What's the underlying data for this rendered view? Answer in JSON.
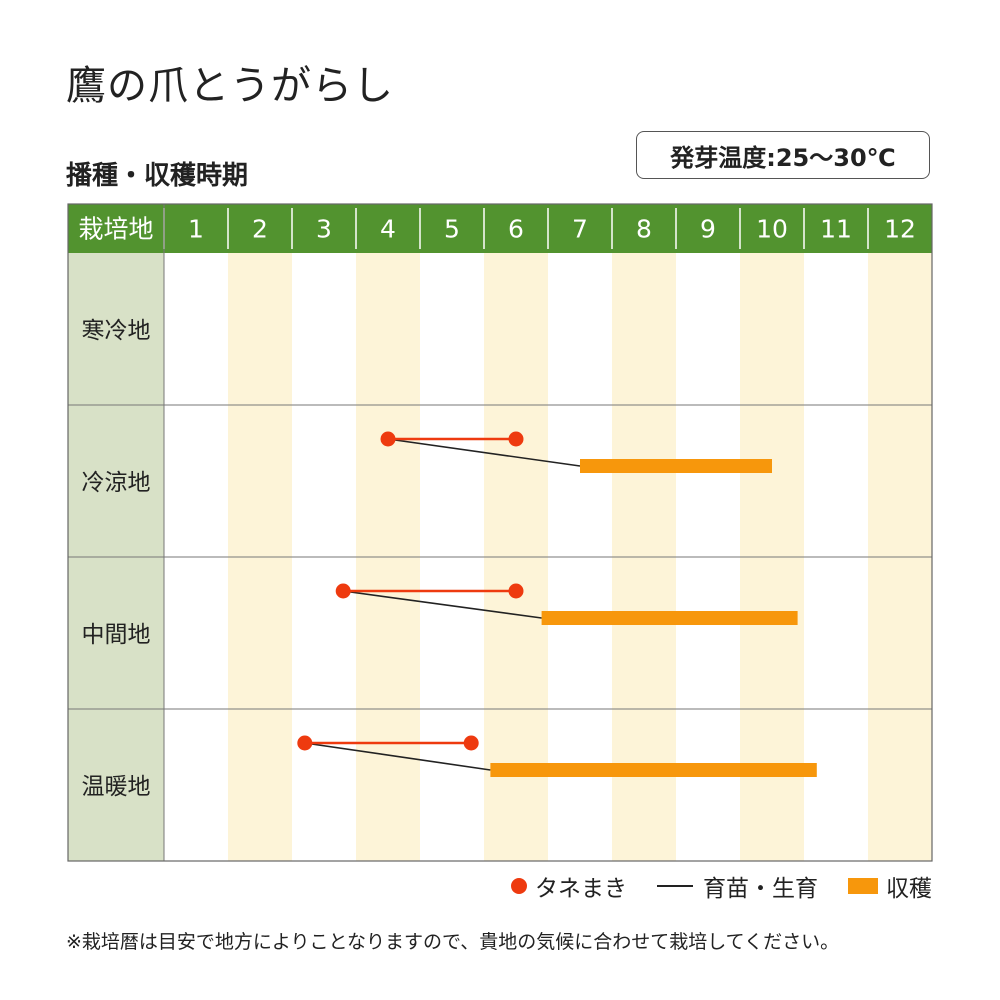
{
  "title": "鷹の爪とうがらし",
  "subtitle": "播種・収穫時期",
  "germination_temp": "発芽温度:25～30℃",
  "note": "※栽培暦は目安で地方によりことなりますので、貴地の気候に合わせて栽培してください。",
  "colors": {
    "header_green": "#52932f",
    "region_bg": "#d8e1c7",
    "stripe": "#fdf4d8",
    "sowing": "#ee3a0f",
    "seedling": "#222222",
    "harvest": "#f7970c"
  },
  "legend": {
    "sowing": "タネまき",
    "seedling": "育苗・生育",
    "harvest": "収穫"
  },
  "chart_data": {
    "type": "table",
    "header": "栽培地",
    "months": [
      "1",
      "2",
      "3",
      "4",
      "5",
      "6",
      "7",
      "8",
      "9",
      "10",
      "11",
      "12"
    ],
    "regions": [
      {
        "name": "寒冷地",
        "sowing": null,
        "harvest": null
      },
      {
        "name": "冷涼地",
        "sowing": [
          4.5,
          6.5
        ],
        "harvest": [
          7.5,
          10.5
        ]
      },
      {
        "name": "中間地",
        "sowing": [
          3.8,
          6.5
        ],
        "harvest": [
          6.9,
          10.9
        ]
      },
      {
        "name": "温暖地",
        "sowing": [
          3.2,
          5.8
        ],
        "harvest": [
          6.1,
          11.2
        ]
      }
    ]
  }
}
